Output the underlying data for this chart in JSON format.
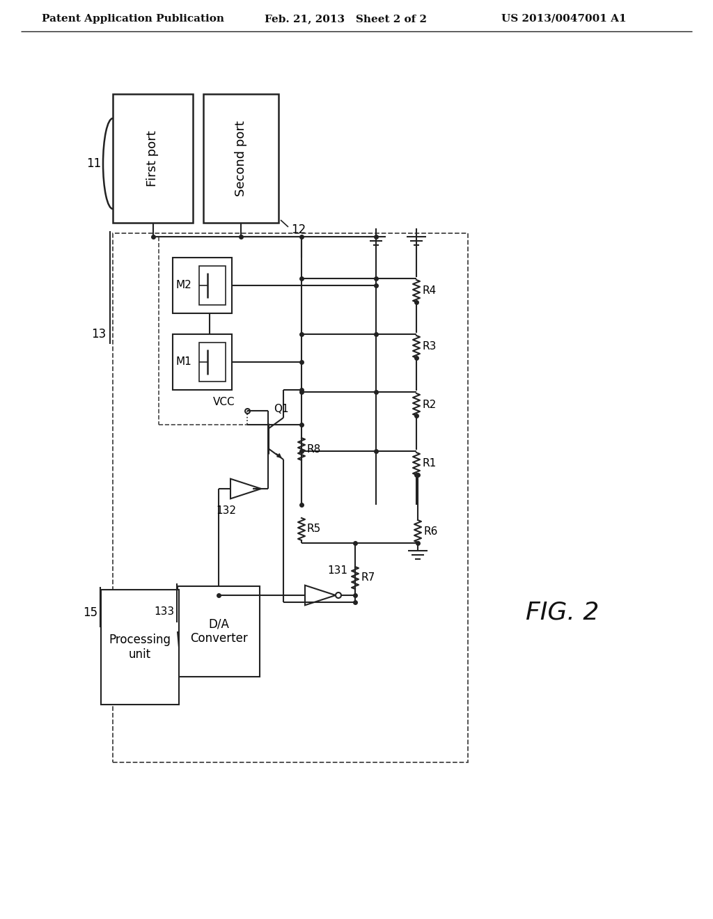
{
  "bg_color": "#ffffff",
  "header_left": "Patent Application Publication",
  "header_mid": "Feb. 21, 2013   Sheet 2 of 2",
  "header_right": "US 2013/0047001 A1",
  "fig_label": "FIG. 2"
}
